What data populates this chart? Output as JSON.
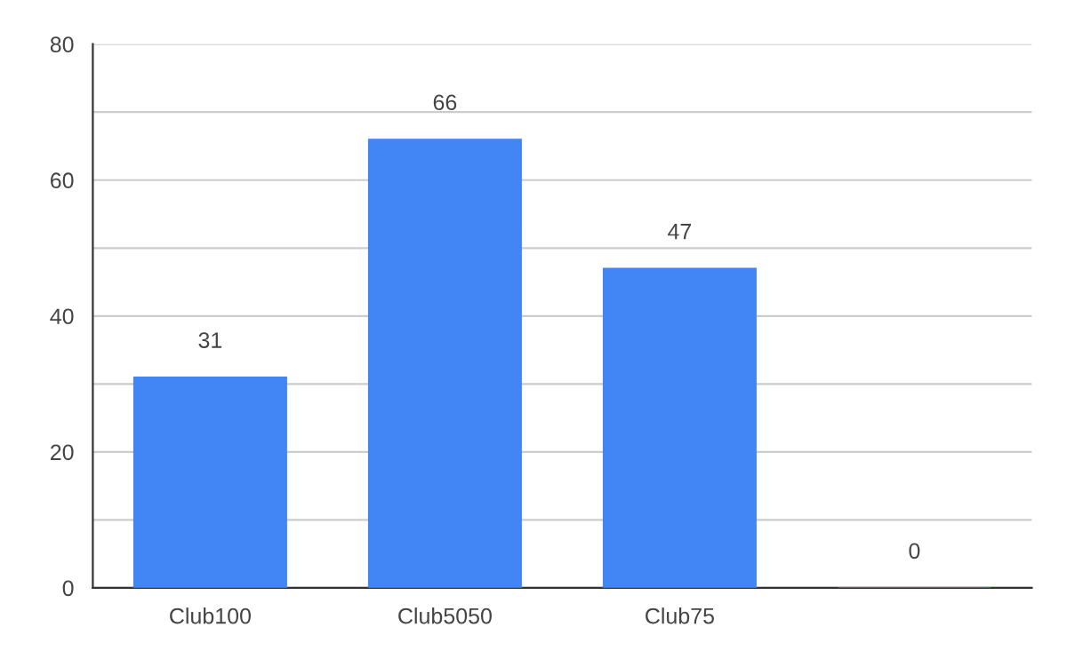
{
  "chart_data": {
    "type": "bar",
    "categories": [
      "Club100",
      "Club5050",
      "Club75",
      null
    ],
    "values": [
      31,
      66,
      47,
      0
    ],
    "color": "#4285f4",
    "ylim": [
      0,
      80
    ],
    "yticks": [
      0,
      {
        "value": 10,
        "label": null
      },
      20,
      {
        "value": 30,
        "label": null
      },
      40,
      {
        "value": 50,
        "label": null
      },
      60,
      {
        "value": 70,
        "label": null
      },
      80
    ],
    "grid": "y",
    "data_labels": true
  }
}
